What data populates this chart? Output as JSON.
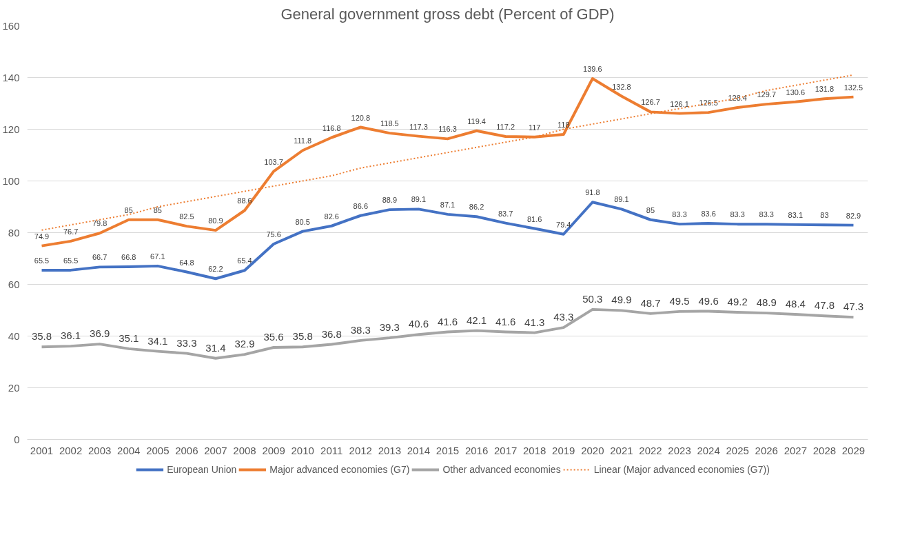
{
  "chart_data": {
    "type": "line",
    "title": "General government gross debt (Percent of GDP)",
    "categories": [
      "2001",
      "2002",
      "2003",
      "2004",
      "2005",
      "2006",
      "2007",
      "2008",
      "2009",
      "2010",
      "2011",
      "2012",
      "2013",
      "2014",
      "2015",
      "2016",
      "2017",
      "2018",
      "2019",
      "2020",
      "2021",
      "2022",
      "2023",
      "2024",
      "2025",
      "2026",
      "2027",
      "2028",
      "2029"
    ],
    "series": [
      {
        "name": "European Union",
        "color": "#4472c4",
        "data_labels": true,
        "values": [
          65.5,
          65.5,
          66.7,
          66.8,
          67.1,
          64.8,
          62.2,
          65.4,
          75.6,
          80.5,
          82.6,
          86.6,
          88.9,
          89.1,
          87.1,
          86.2,
          83.7,
          81.6,
          79.4,
          91.8,
          89.1,
          85,
          83.3,
          83.6,
          83.3,
          83.3,
          83.1,
          83,
          82.9
        ]
      },
      {
        "name": "Major advanced economies (G7)",
        "color": "#ed7d31",
        "data_labels": true,
        "values": [
          74.9,
          76.7,
          79.8,
          85,
          85,
          82.5,
          80.9,
          88.6,
          103.7,
          111.8,
          116.8,
          120.8,
          118.5,
          117.3,
          116.3,
          119.4,
          117.2,
          117,
          118,
          139.6,
          132.8,
          126.7,
          126.1,
          126.5,
          128.4,
          129.7,
          130.6,
          131.8,
          132.5
        ]
      },
      {
        "name": "Other advanced economies",
        "color": "#a5a5a5",
        "data_labels": true,
        "values": [
          35.8,
          36.1,
          36.9,
          35.1,
          34.1,
          33.3,
          31.4,
          32.9,
          35.6,
          35.8,
          36.8,
          38.3,
          39.3,
          40.6,
          41.6,
          42.1,
          41.6,
          41.3,
          43.3,
          50.3,
          49.9,
          48.7,
          49.5,
          49.6,
          49.2,
          48.9,
          48.4,
          47.8,
          47.3
        ]
      },
      {
        "name": "Linear (Major advanced economies (G7))",
        "color": "#ed7d31",
        "line_style": "dotted",
        "values": [
          81,
          83,
          85,
          87,
          90,
          92,
          94,
          96,
          98,
          100,
          102,
          105,
          107,
          109,
          111,
          113,
          115,
          117,
          120,
          122,
          124,
          126,
          128,
          130,
          132,
          135,
          137,
          139,
          141
        ]
      }
    ],
    "ylim": [
      0,
      160
    ],
    "yticks": [
      0,
      20,
      40,
      60,
      80,
      100,
      120,
      140,
      160
    ],
    "grid": "y",
    "legend": "bottom",
    "line_style": "solid",
    "marker": "none"
  }
}
